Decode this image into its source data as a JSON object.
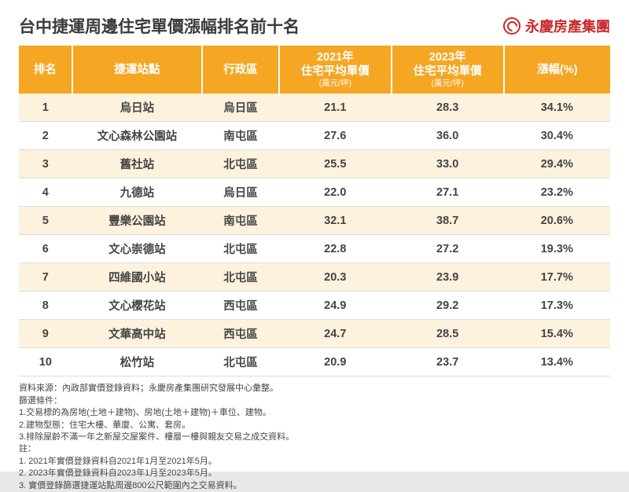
{
  "title": "台中捷運周邊住宅單價漲幅排名前十名",
  "logo_text": "永慶房產集團",
  "columns": [
    {
      "label": "排名",
      "sub": ""
    },
    {
      "label": "捷運站點",
      "sub": ""
    },
    {
      "label": "行政區",
      "sub": ""
    },
    {
      "label": "2021年\n住宅平均單價",
      "sub": "(萬元/坪)"
    },
    {
      "label": "2023年\n住宅平均單價",
      "sub": "(萬元/坪)"
    },
    {
      "label": "漲幅(%)",
      "sub": ""
    }
  ],
  "rows": [
    {
      "rank": "1",
      "station": "烏日站",
      "district": "烏日區",
      "p2021": "21.1",
      "p2023": "28.3",
      "growth": "34.1%"
    },
    {
      "rank": "2",
      "station": "文心森林公園站",
      "district": "南屯區",
      "p2021": "27.6",
      "p2023": "36.0",
      "growth": "30.4%"
    },
    {
      "rank": "3",
      "station": "舊社站",
      "district": "北屯區",
      "p2021": "25.5",
      "p2023": "33.0",
      "growth": "29.4%"
    },
    {
      "rank": "4",
      "station": "九德站",
      "district": "烏日區",
      "p2021": "22.0",
      "p2023": "27.1",
      "growth": "23.2%"
    },
    {
      "rank": "5",
      "station": "豐樂公園站",
      "district": "南屯區",
      "p2021": "32.1",
      "p2023": "38.7",
      "growth": "20.6%"
    },
    {
      "rank": "6",
      "station": "文心崇德站",
      "district": "北屯區",
      "p2021": "22.8",
      "p2023": "27.2",
      "growth": "19.3%"
    },
    {
      "rank": "7",
      "station": "四維國小站",
      "district": "北屯區",
      "p2021": "20.3",
      "p2023": "23.9",
      "growth": "17.7%"
    },
    {
      "rank": "8",
      "station": "文心櫻花站",
      "district": "西屯區",
      "p2021": "24.9",
      "p2023": "29.2",
      "growth": "17.3%"
    },
    {
      "rank": "9",
      "station": "文華高中站",
      "district": "西屯區",
      "p2021": "24.7",
      "p2023": "28.5",
      "growth": "15.4%"
    },
    {
      "rank": "10",
      "station": "松竹站",
      "district": "北屯區",
      "p2021": "20.9",
      "p2023": "23.7",
      "growth": "13.4%"
    }
  ],
  "notes": [
    "資料來源：內政部實價登錄資料；永慶房產集團研究發展中心彙整。",
    "篩選條件：",
    "1.交易標的為房地(土地＋建物)、房地(土地＋建物)＋車位、建物。",
    "2.建物型態：住宅大樓、華廈、公寓、套房。",
    "3.排除屋齡不滿一年之新屋交屋案件、樓層一樓與親友交易之成交資料。",
    "註：",
    "1. 2021年實價登錄資料自2021年1月至2021年5月。",
    "2. 2023年實價登錄資料自2023年1月至2023年5月。",
    "3. 實價登錄篩選捷運站點周邊800公尺範圍內之交易資料。"
  ],
  "style": {
    "header_bg": "#f5a623",
    "header_fg": "#ffffff",
    "row_alt_bg": "#fdf2dd",
    "row_bg": "#ffffff",
    "border_color": "#dcdcdc",
    "title_color": "#3a3a3a",
    "logo_color": "#c92a2a",
    "title_fontsize": 21,
    "header_fontsize": 14.5,
    "body_fontsize": 14.5,
    "notes_fontsize": 11
  }
}
